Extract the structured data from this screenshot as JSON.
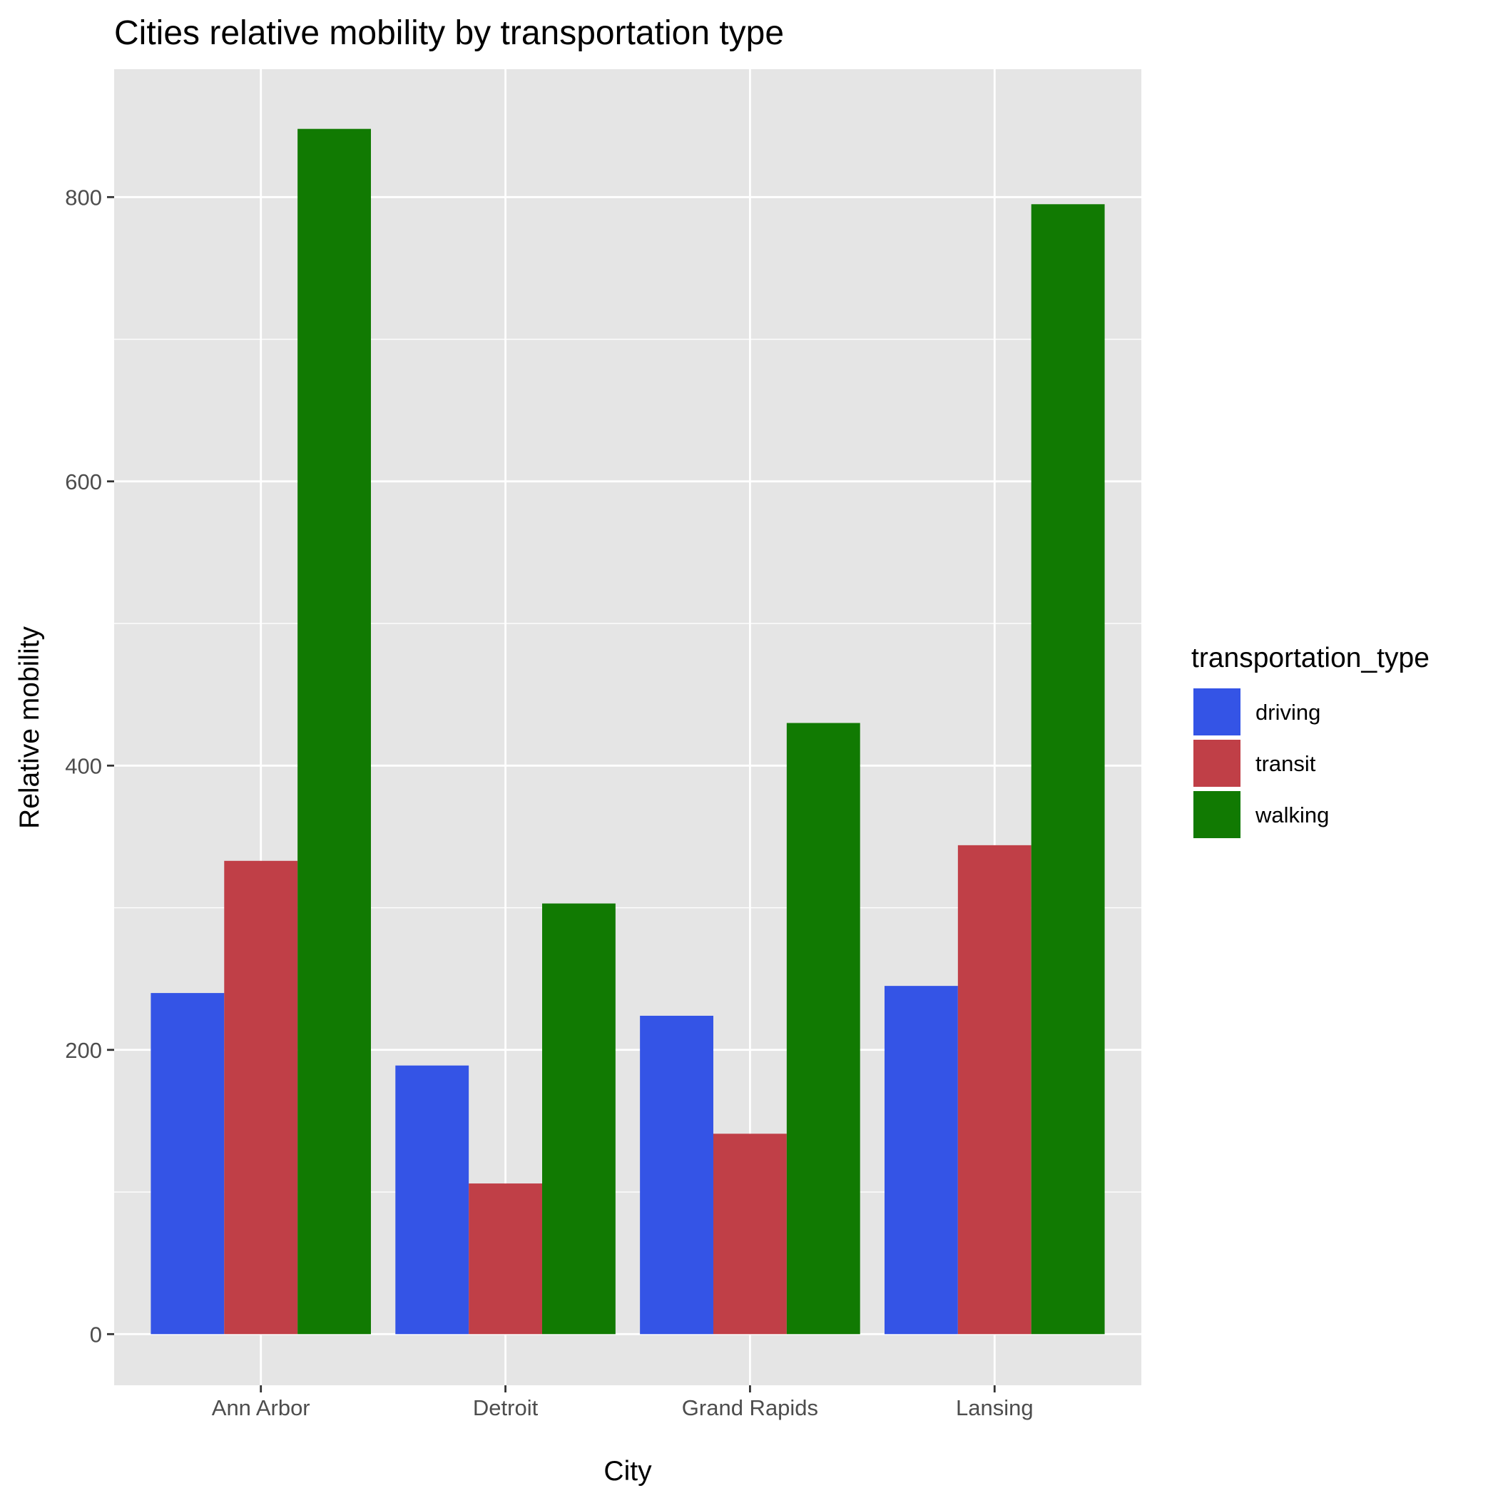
{
  "chart_data": {
    "type": "bar",
    "title": "Cities relative mobility by transportation type",
    "xlabel": "City",
    "ylabel": "Relative mobility",
    "categories": [
      "Ann Arbor",
      "Detroit",
      "Grand Rapids",
      "Lansing"
    ],
    "series": [
      {
        "name": "driving",
        "color": "#3454e6",
        "values": [
          240,
          189,
          224,
          245
        ]
      },
      {
        "name": "transit",
        "color": "#c03f47",
        "values": [
          333,
          106,
          141,
          344
        ]
      },
      {
        "name": "walking",
        "color": "#117a02",
        "values": [
          848,
          303,
          430,
          795
        ]
      }
    ],
    "ylim": [
      -36,
      890
    ],
    "yticks": [
      "0",
      "200",
      "400",
      "600",
      "800"
    ],
    "legend": {
      "title": "transportation_type",
      "position": "right"
    },
    "panel_background": "#e5e5e5",
    "grid": true
  }
}
